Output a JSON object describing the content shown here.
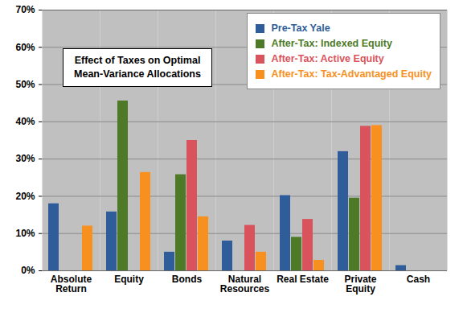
{
  "chart_data": {
    "type": "bar",
    "title": "Effect of Taxes on Optimal Mean-Variance Allocations",
    "categories": [
      "Absolute Return",
      "Equity",
      "Bonds",
      "Natural Resources",
      "Real Estate",
      "Private Equity",
      "Cash"
    ],
    "series": [
      {
        "name": "Pre-Tax Yale",
        "color": "#2f5d9a",
        "values": [
          18,
          15.8,
          5,
          8,
          20.2,
          32,
          1.4
        ]
      },
      {
        "name": "After-Tax: Indexed Equity",
        "color": "#4e7a28",
        "values": [
          0,
          45.6,
          25.8,
          0,
          9,
          19.5,
          0
        ]
      },
      {
        "name": "After-Tax: Active Equity",
        "color": "#d9535c",
        "values": [
          0,
          0,
          35,
          12.2,
          13.8,
          38.8,
          0
        ]
      },
      {
        "name": "After-Tax: Tax-Advantaged Equity",
        "color": "#f7901e",
        "values": [
          12,
          26.4,
          14.5,
          5,
          2.8,
          39,
          0
        ]
      }
    ],
    "ylim": [
      0,
      70
    ],
    "yticks": [
      {
        "value": 0,
        "label": "0%"
      },
      {
        "value": 10,
        "label": "10%"
      },
      {
        "value": 20,
        "label": "20%"
      },
      {
        "value": 30,
        "label": "30%"
      },
      {
        "value": 40,
        "label": "40%"
      },
      {
        "value": 50,
        "label": "50%"
      },
      {
        "value": 60,
        "label": "60%"
      },
      {
        "value": 70,
        "label": "70%"
      }
    ],
    "grid": true,
    "legend": "top-right"
  }
}
